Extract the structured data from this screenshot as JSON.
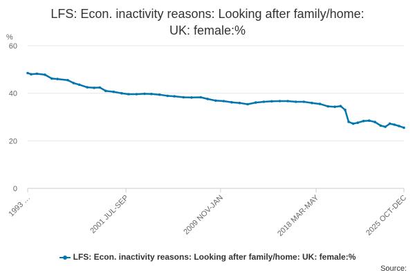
{
  "chart_data": {
    "type": "line",
    "title": "LFS: Econ. inactivity reasons: Looking after family/home:\nUK: female:%",
    "ylabel": "%",
    "xlabel": "",
    "ylim": [
      0,
      60
    ],
    "yticks": [
      "0",
      "20",
      "40",
      "60"
    ],
    "ytick_values": [
      0,
      20,
      40,
      60
    ],
    "xtick_labels": [
      "1993 …",
      "2001 JUL-SEP",
      "2009 NOV-JAN",
      "2018 MAR-MAY",
      "2025 OCT-DEC"
    ],
    "xtick_values": [
      1993.0,
      2001.58,
      2009.83,
      2018.17,
      2025.83
    ],
    "x_range": [
      1993.0,
      2025.83
    ],
    "grid": true,
    "legend_position": "bottom",
    "series": [
      {
        "name": "LFS: Econ. inactivity reasons: Looking after family/home: UK: female:%",
        "color": "#0075b0",
        "x": [
          1993.0,
          1993.3,
          1993.8,
          1994.5,
          1995.1,
          1995.6,
          1996.5,
          1997.0,
          1997.5,
          1998.2,
          1998.8,
          1999.3,
          1999.8,
          2000.5,
          2001.2,
          2001.8,
          2002.5,
          2003.2,
          2003.8,
          2004.5,
          2005.2,
          2005.8,
          2006.6,
          2007.3,
          2008.1,
          2008.7,
          2009.4,
          2010.1,
          2010.8,
          2011.5,
          2012.2,
          2012.9,
          2013.6,
          2014.3,
          2015.0,
          2015.7,
          2016.4,
          2017.1,
          2017.8,
          2018.5,
          2019.2,
          2019.8,
          2020.3,
          2020.7,
          2021.0,
          2021.4,
          2021.8,
          2022.3,
          2022.8,
          2023.3,
          2023.8,
          2024.2,
          2024.6,
          2025.0,
          2025.4,
          2025.83
        ],
        "values": [
          48.5,
          48.0,
          48.2,
          47.8,
          46.2,
          46.0,
          45.5,
          44.3,
          43.6,
          42.5,
          42.3,
          42.4,
          41.0,
          40.6,
          40.0,
          39.6,
          39.6,
          39.8,
          39.7,
          39.4,
          38.9,
          38.7,
          38.3,
          38.2,
          38.3,
          37.6,
          36.9,
          36.7,
          36.2,
          35.9,
          35.4,
          36.1,
          36.4,
          36.6,
          36.7,
          36.7,
          36.4,
          36.4,
          35.9,
          35.5,
          34.5,
          34.3,
          34.6,
          33.0,
          28.0,
          27.2,
          27.6,
          28.3,
          28.5,
          27.9,
          26.4,
          25.9,
          27.2,
          26.8,
          26.2,
          25.5
        ]
      }
    ]
  },
  "footer": {
    "source_label": "Source:"
  }
}
